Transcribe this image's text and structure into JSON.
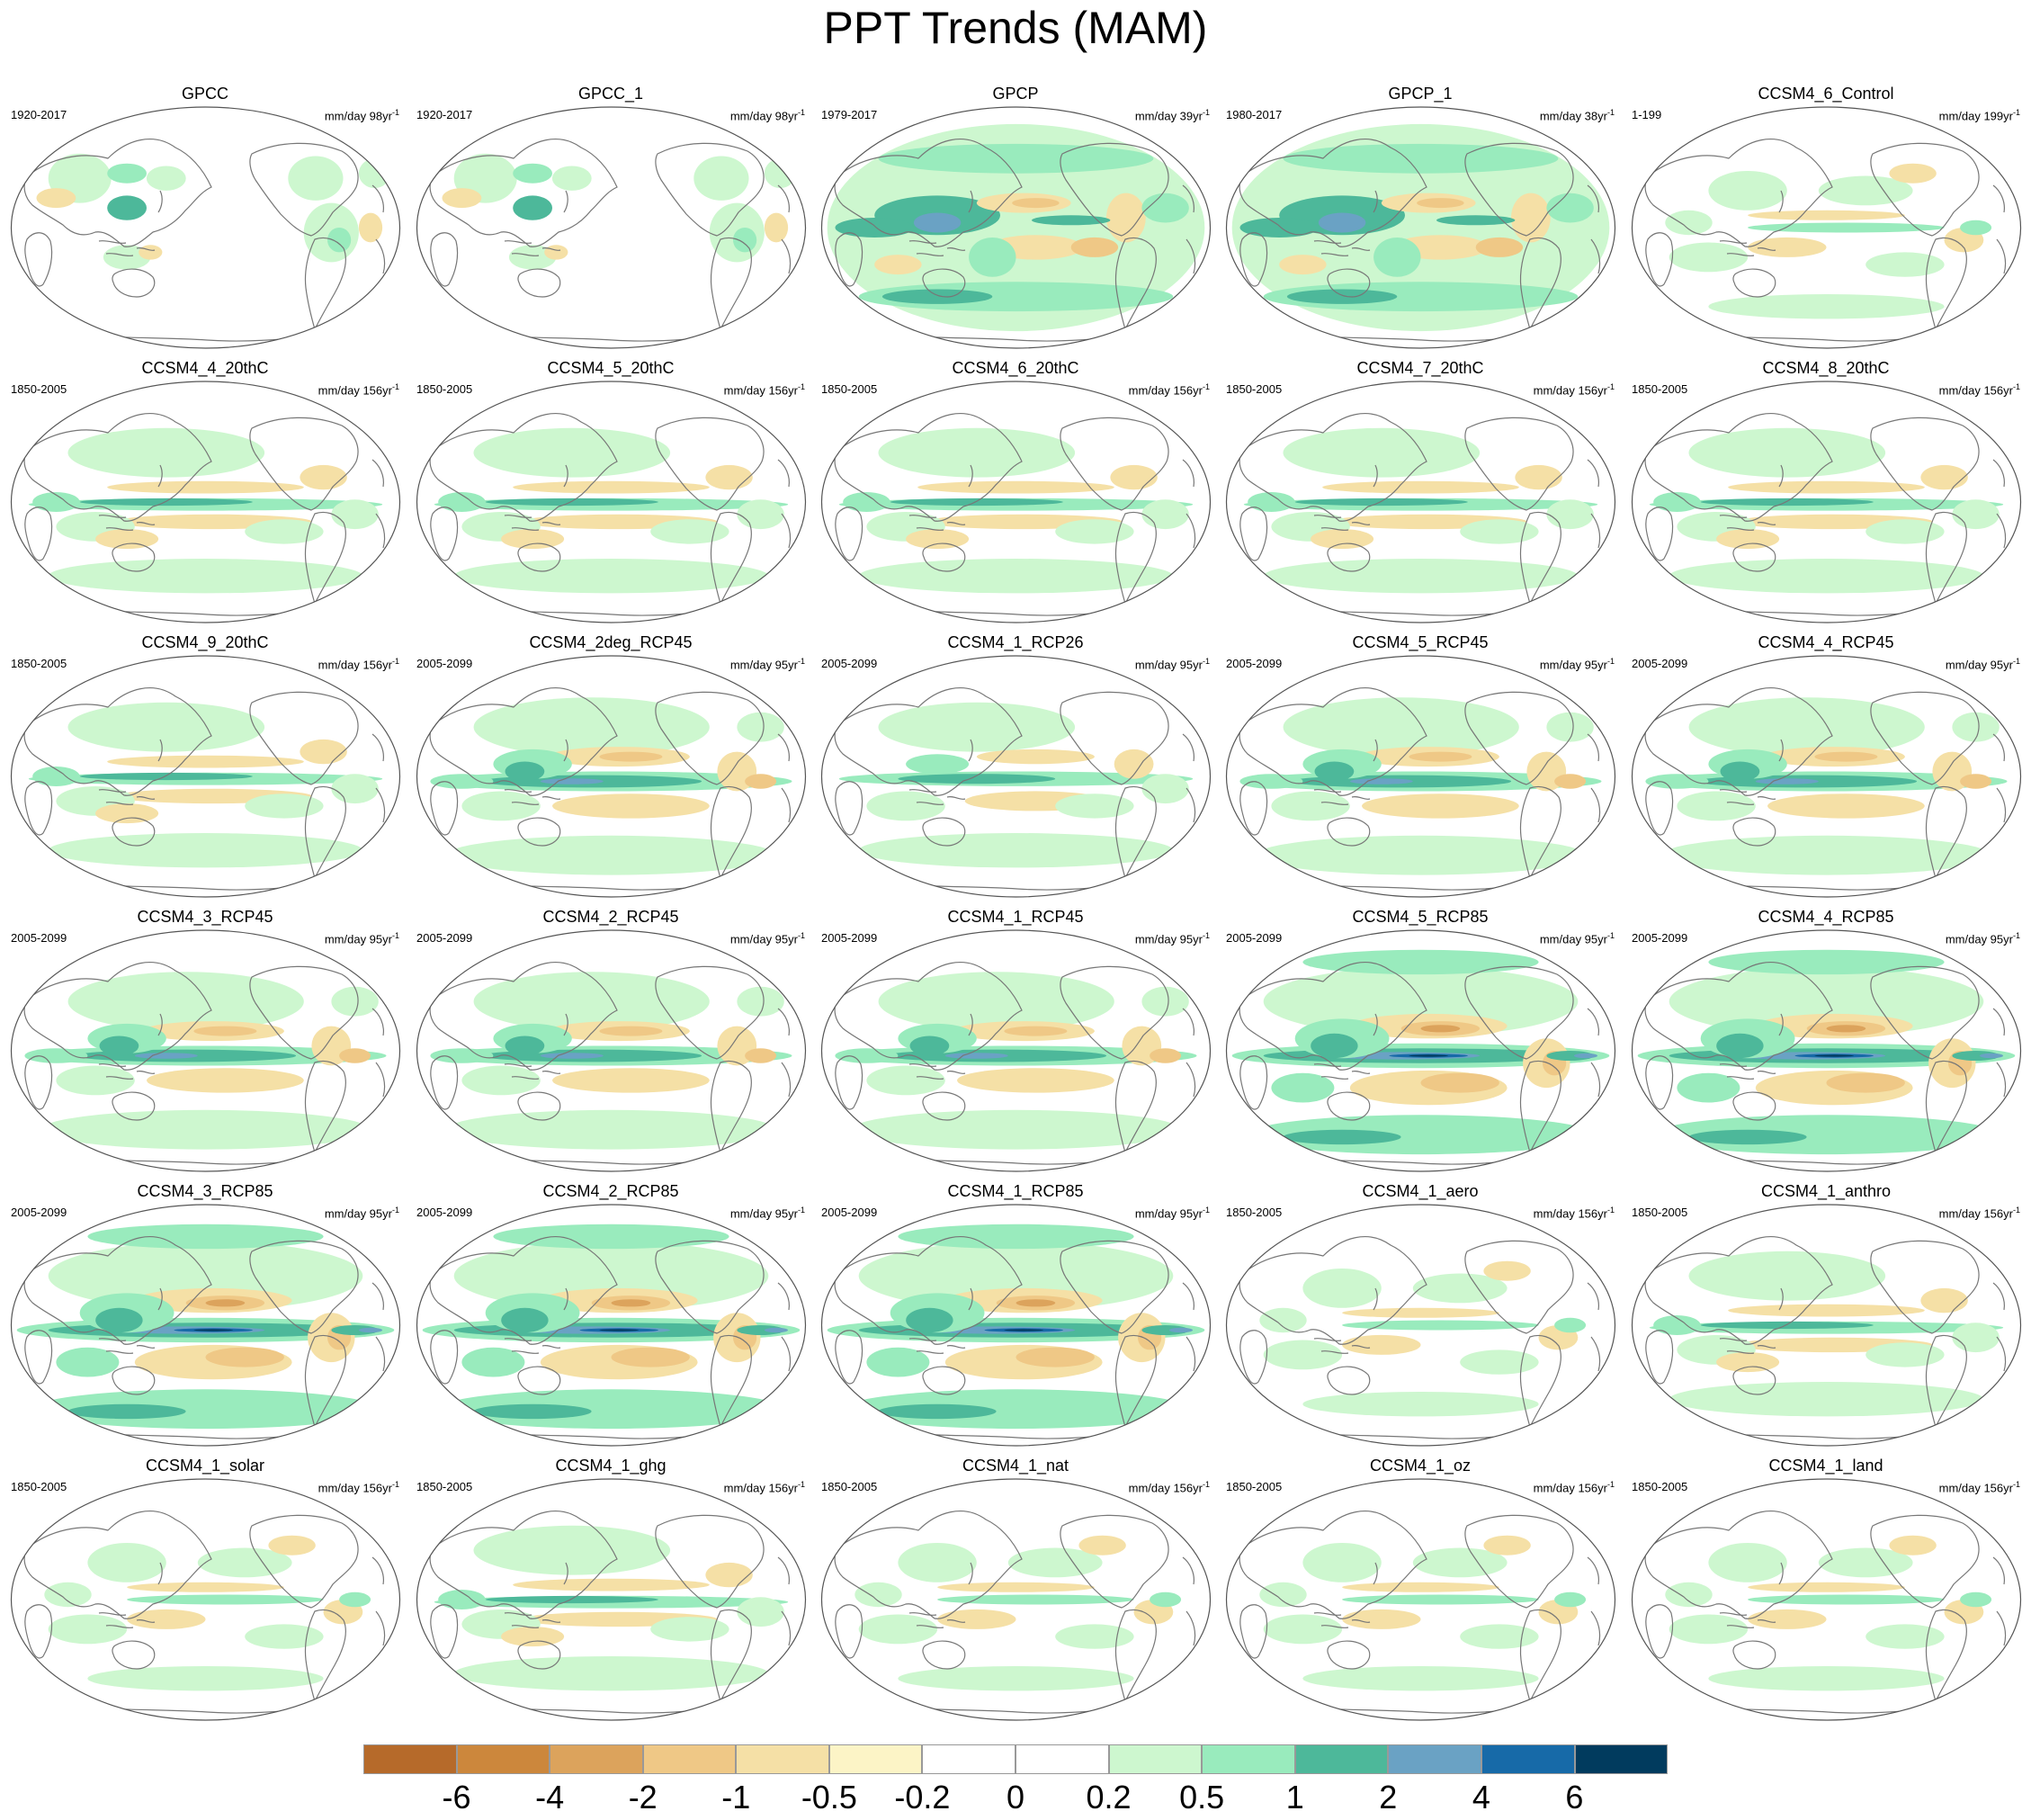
{
  "title": "PPT Trends (MAM)",
  "colors": {
    "scale": [
      "#b66a2a",
      "#cc873c",
      "#dca35c",
      "#efc886",
      "#f5e0a6",
      "#fcf4c6",
      "#ffffff",
      "#ffffff",
      "#cdf7cf",
      "#99ebbd",
      "#4db89a",
      "#6aa2c4",
      "#176aa8",
      "#013b5e"
    ],
    "coast": "#777777"
  },
  "colorbar": {
    "labels": [
      "-6",
      "-4",
      "-2",
      "-1",
      "-0.5",
      "-0.2",
      "0",
      "0.2",
      "0.5",
      "1",
      "2",
      "4",
      "6"
    ]
  },
  "panels": [
    {
      "title": "GPCC",
      "period": "1920-2017",
      "units": "mm/day 98yr",
      "sup": "-1",
      "style": "land"
    },
    {
      "title": "GPCC_1",
      "period": "1920-2017",
      "units": "mm/day 98yr",
      "sup": "-1",
      "style": "land"
    },
    {
      "title": "GPCP",
      "period": "1979-2017",
      "units": "mm/day 39yr",
      "sup": "-1",
      "style": "obs"
    },
    {
      "title": "GPCP_1",
      "period": "1980-2017",
      "units": "mm/day 38yr",
      "sup": "-1",
      "style": "obs"
    },
    {
      "title": "CCSM4_6_Control",
      "period": "1-199",
      "units": "mm/day 199yr",
      "sup": "-1",
      "style": "weak"
    },
    {
      "title": "CCSM4_4_20thC",
      "period": "1850-2005",
      "units": "mm/day 156yr",
      "sup": "-1",
      "style": "hist"
    },
    {
      "title": "CCSM4_5_20thC",
      "period": "1850-2005",
      "units": "mm/day 156yr",
      "sup": "-1",
      "style": "hist"
    },
    {
      "title": "CCSM4_6_20thC",
      "period": "1850-2005",
      "units": "mm/day 156yr",
      "sup": "-1",
      "style": "hist"
    },
    {
      "title": "CCSM4_7_20thC",
      "period": "1850-2005",
      "units": "mm/day 156yr",
      "sup": "-1",
      "style": "hist"
    },
    {
      "title": "CCSM4_8_20thC",
      "period": "1850-2005",
      "units": "mm/day 156yr",
      "sup": "-1",
      "style": "hist"
    },
    {
      "title": "CCSM4_9_20thC",
      "period": "1850-2005",
      "units": "mm/day 156yr",
      "sup": "-1",
      "style": "hist"
    },
    {
      "title": "CCSM4_2deg_RCP45",
      "period": "2005-2099",
      "units": "mm/day 95yr",
      "sup": "-1",
      "style": "rcp45"
    },
    {
      "title": "CCSM4_1_RCP26",
      "period": "2005-2099",
      "units": "mm/day 95yr",
      "sup": "-1",
      "style": "rcp26"
    },
    {
      "title": "CCSM4_5_RCP45",
      "period": "2005-2099",
      "units": "mm/day 95yr",
      "sup": "-1",
      "style": "rcp45"
    },
    {
      "title": "CCSM4_4_RCP45",
      "period": "2005-2099",
      "units": "mm/day 95yr",
      "sup": "-1",
      "style": "rcp45"
    },
    {
      "title": "CCSM4_3_RCP45",
      "period": "2005-2099",
      "units": "mm/day 95yr",
      "sup": "-1",
      "style": "rcp45"
    },
    {
      "title": "CCSM4_2_RCP45",
      "period": "2005-2099",
      "units": "mm/day 95yr",
      "sup": "-1",
      "style": "rcp45"
    },
    {
      "title": "CCSM4_1_RCP45",
      "period": "2005-2099",
      "units": "mm/day 95yr",
      "sup": "-1",
      "style": "rcp45"
    },
    {
      "title": "CCSM4_5_RCP85",
      "period": "2005-2099",
      "units": "mm/day 95yr",
      "sup": "-1",
      "style": "rcp85"
    },
    {
      "title": "CCSM4_4_RCP85",
      "period": "2005-2099",
      "units": "mm/day 95yr",
      "sup": "-1",
      "style": "rcp85"
    },
    {
      "title": "CCSM4_3_RCP85",
      "period": "2005-2099",
      "units": "mm/day 95yr",
      "sup": "-1",
      "style": "rcp85"
    },
    {
      "title": "CCSM4_2_RCP85",
      "period": "2005-2099",
      "units": "mm/day 95yr",
      "sup": "-1",
      "style": "rcp85"
    },
    {
      "title": "CCSM4_1_RCP85",
      "period": "2005-2099",
      "units": "mm/day 95yr",
      "sup": "-1",
      "style": "rcp85"
    },
    {
      "title": "CCSM4_1_aero",
      "period": "1850-2005",
      "units": "mm/day 156yr",
      "sup": "-1",
      "style": "weak"
    },
    {
      "title": "CCSM4_1_anthro",
      "period": "1850-2005",
      "units": "mm/day 156yr",
      "sup": "-1",
      "style": "hist"
    },
    {
      "title": "CCSM4_1_solar",
      "period": "1850-2005",
      "units": "mm/day 156yr",
      "sup": "-1",
      "style": "weak"
    },
    {
      "title": "CCSM4_1_ghg",
      "period": "1850-2005",
      "units": "mm/day 156yr",
      "sup": "-1",
      "style": "hist"
    },
    {
      "title": "CCSM4_1_nat",
      "period": "1850-2005",
      "units": "mm/day 156yr",
      "sup": "-1",
      "style": "weak"
    },
    {
      "title": "CCSM4_1_oz",
      "period": "1850-2005",
      "units": "mm/day 156yr",
      "sup": "-1",
      "style": "weak"
    },
    {
      "title": "CCSM4_1_land",
      "period": "1850-2005",
      "units": "mm/day 156yr",
      "sup": "-1",
      "style": "weak"
    }
  ]
}
